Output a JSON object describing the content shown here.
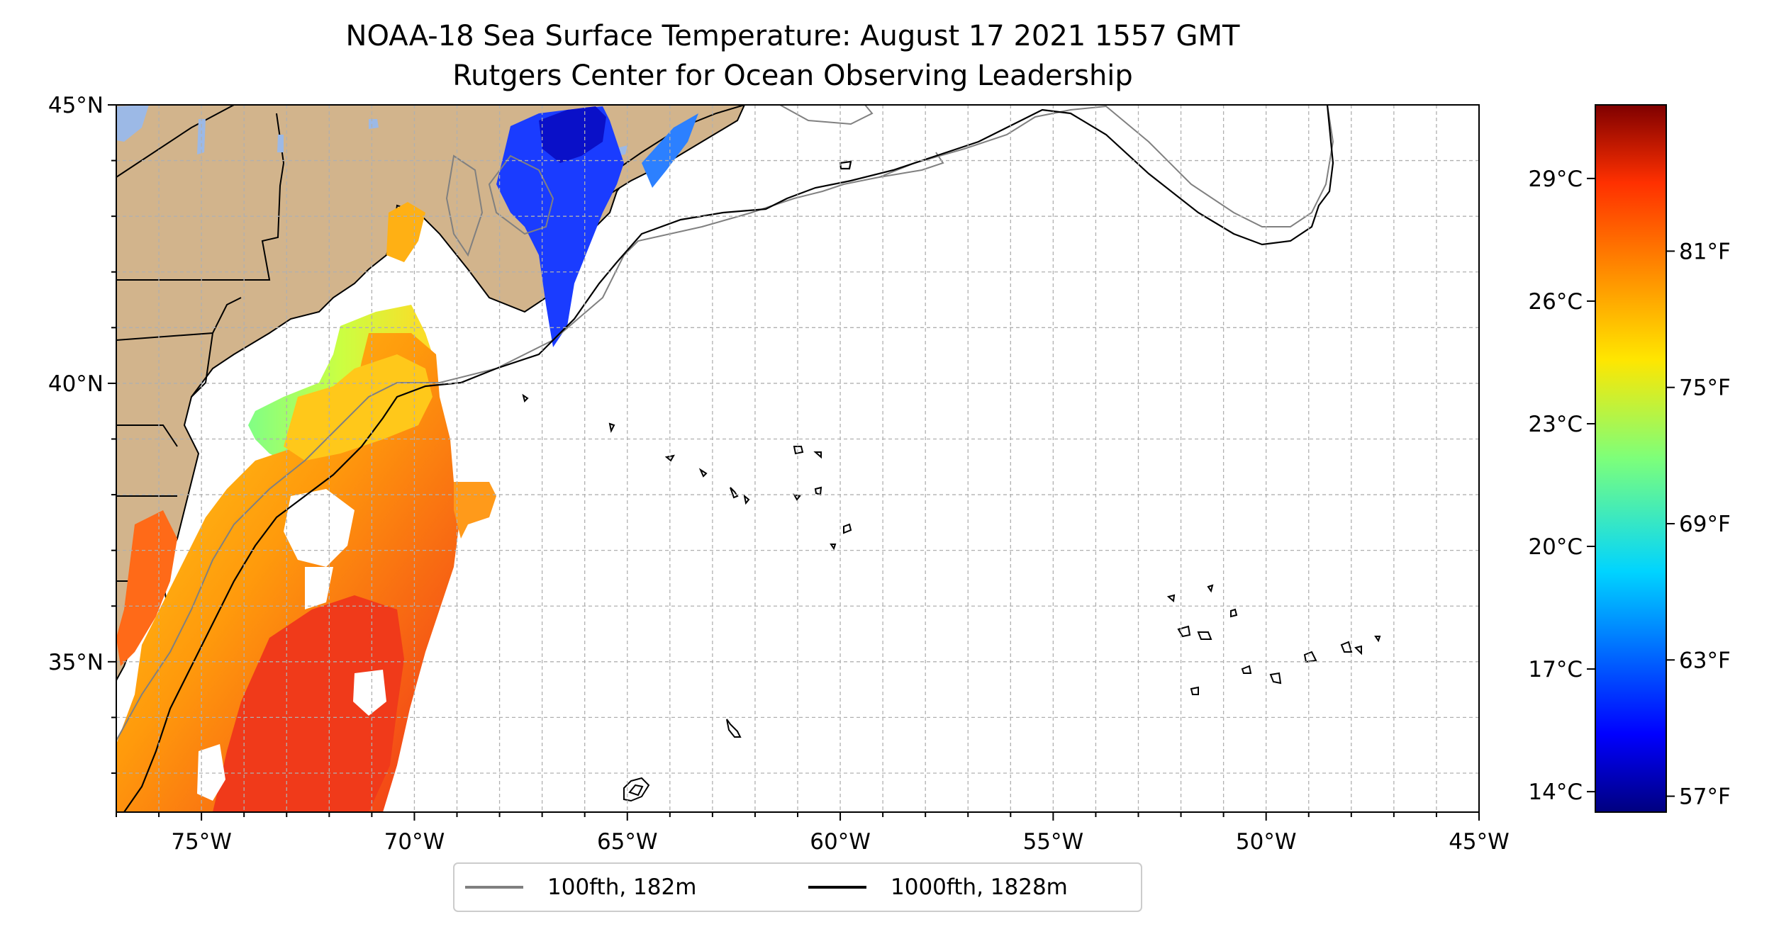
{
  "title": {
    "line1": "NOAA-18 Sea Surface Temperature: August 17 2021 1557 GMT",
    "line2": "Rutgers Center for Ocean Observing Leadership"
  },
  "map": {
    "lon_range": [
      -77,
      -45
    ],
    "lat_range": [
      32.3,
      45
    ],
    "lat_ticks": [
      {
        "value": 45,
        "label": "45°N"
      },
      {
        "value": 40,
        "label": "40°N"
      },
      {
        "value": 35,
        "label": "35°N"
      }
    ],
    "lon_ticks": [
      {
        "value": -75,
        "label": "75°W"
      },
      {
        "value": -70,
        "label": "70°W"
      },
      {
        "value": -65,
        "label": "65°W"
      },
      {
        "value": -60,
        "label": "60°W"
      },
      {
        "value": -55,
        "label": "55°W"
      },
      {
        "value": -50,
        "label": "50°W"
      },
      {
        "value": -45,
        "label": "45°W"
      }
    ],
    "grid": "dashed, 1 degree",
    "land_color": "#d2b48c",
    "lake_color": "#9cb9e6"
  },
  "colorbar": {
    "colormap": "jet",
    "range_celsius": [
      13.5,
      30.8
    ],
    "celsius_ticks": [
      {
        "value": 29,
        "label": "29°C"
      },
      {
        "value": 26,
        "label": "26°C"
      },
      {
        "value": 23,
        "label": "23°C"
      },
      {
        "value": 20,
        "label": "20°C"
      },
      {
        "value": 17,
        "label": "17°C"
      },
      {
        "value": 14,
        "label": "14°C"
      }
    ],
    "fahrenheit_ticks": [
      {
        "value": 81,
        "label": "81°F"
      },
      {
        "value": 75,
        "label": "75°F"
      },
      {
        "value": 69,
        "label": "69°F"
      },
      {
        "value": 63,
        "label": "63°F"
      },
      {
        "value": 57,
        "label": "57°F"
      }
    ]
  },
  "legend": {
    "placement": "bottom-center",
    "items": [
      {
        "label": "100fth, 182m",
        "color": "#808080"
      },
      {
        "label": "1000fth, 1828m",
        "color": "#000000"
      }
    ]
  }
}
